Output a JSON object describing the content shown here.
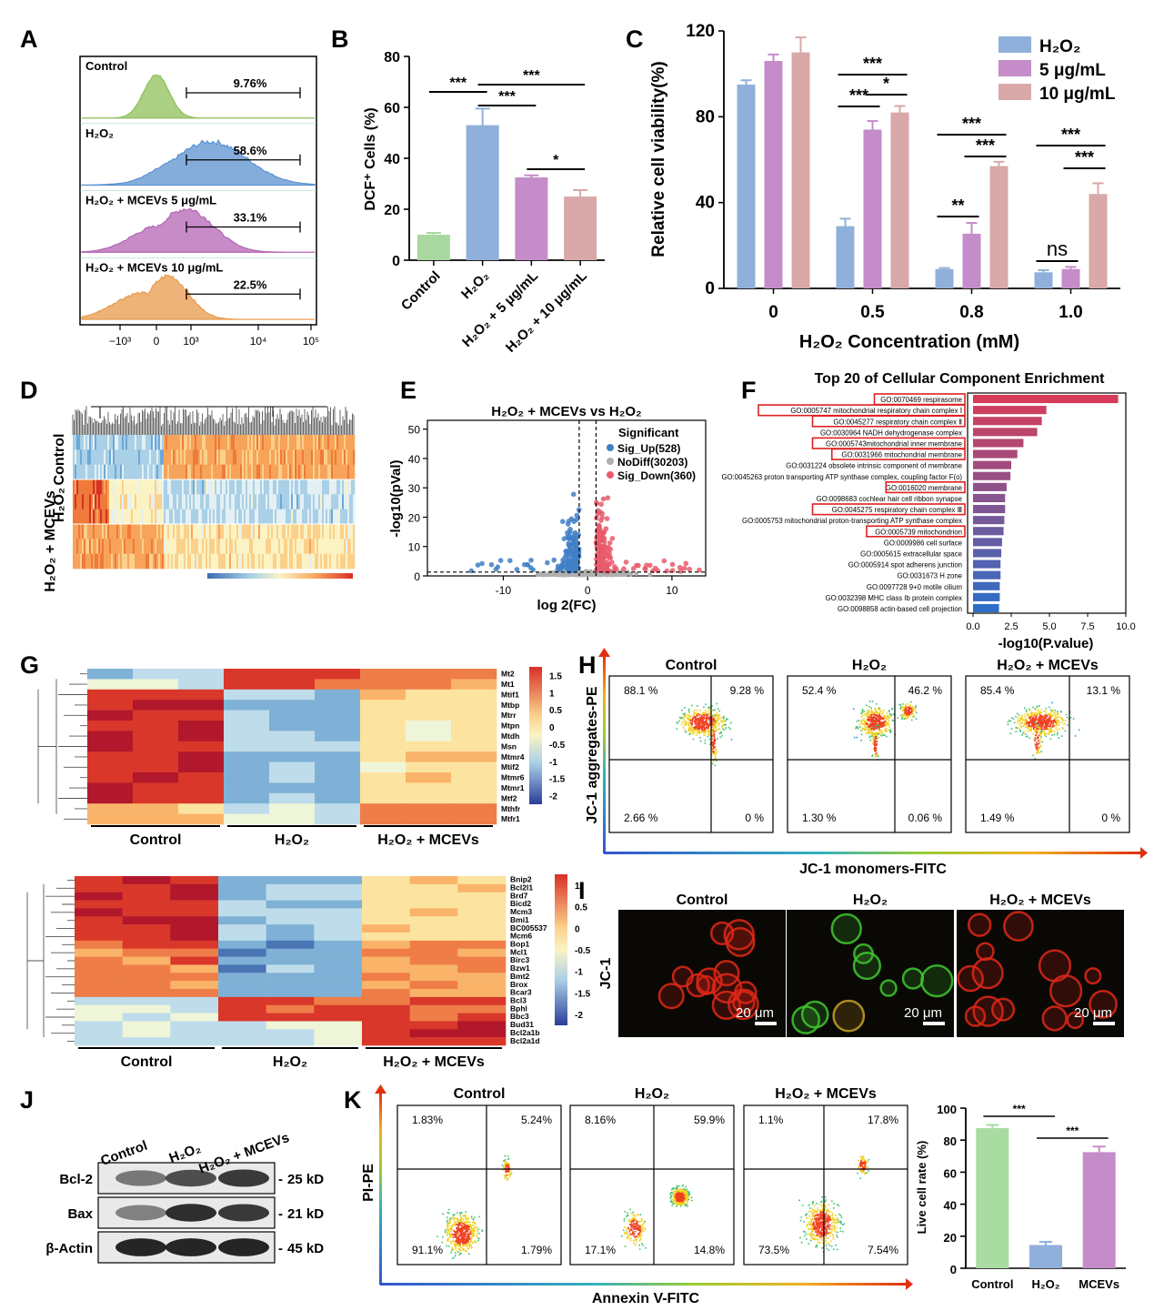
{
  "panel_labels": [
    "A",
    "B",
    "C",
    "D",
    "E",
    "F",
    "G",
    "H",
    "I",
    "J",
    "K"
  ],
  "chart_data": [
    {
      "panel": "A",
      "type": "area",
      "title": "",
      "x_tick_labels": [
        "−10³",
        "0",
        "10³",
        "10⁴",
        "10⁵"
      ],
      "series": [
        {
          "name": "Control",
          "gate_percent": "9.76%",
          "color": "#8fbf5a"
        },
        {
          "name": "H₂O₂",
          "gate_percent": "58.6%",
          "color": "#5b92d0"
        },
        {
          "name": "H₂O₂ + MCEVs 5 μg/mL",
          "gate_percent": "33.1%",
          "color": "#b466b4"
        },
        {
          "name": "H₂O₂ + MCEVs 10 μg/mL",
          "gate_percent": "22.5%",
          "color": "#e89a4c"
        }
      ]
    },
    {
      "panel": "B",
      "type": "bar",
      "ylabel": "DCF⁺ Cells (%)",
      "ylim": [
        0,
        80
      ],
      "y_ticks": [
        "0",
        "20",
        "40",
        "60",
        "80"
      ],
      "categories": [
        "Control",
        "H₂O₂",
        "H₂O₂ + 5 μg/mL",
        "H₂O₂ + 10 μg/mL"
      ],
      "values": [
        10,
        53,
        32.5,
        25
      ],
      "errors": [
        0.7,
        6.5,
        0.8,
        2.5
      ],
      "colors": [
        "#a8d8a0",
        "#8fb0da",
        "#c48cc8",
        "#d9a8a8"
      ],
      "significance": [
        "***",
        "***",
        "***",
        "*"
      ]
    },
    {
      "panel": "C",
      "type": "bar",
      "ylabel": "Relative cell viability(%)",
      "xlabel": "H₂O₂ Concentration (mM)",
      "ylim": [
        0,
        120
      ],
      "y_ticks": [
        "0",
        "40",
        "80",
        "120"
      ],
      "categories": [
        "0",
        "0.5",
        "0.8",
        "1.0"
      ],
      "legend_title": "",
      "series": [
        {
          "name": "H₂O₂",
          "color": "#8fb0da",
          "values": [
            95,
            29,
            9,
            7.5
          ],
          "errors": [
            2,
            3.5,
            0.5,
            1
          ]
        },
        {
          "name": "5 μg/mL",
          "color": "#c48cc8",
          "values": [
            106,
            74,
            25.5,
            9
          ],
          "errors": [
            3,
            4,
            5,
            1
          ]
        },
        {
          "name": "10 μg/mL",
          "color": "#d9a8a8",
          "values": [
            110,
            82,
            57,
            44
          ],
          "errors": [
            7,
            3,
            2,
            5
          ]
        }
      ],
      "significance": [
        "***",
        "***",
        "*",
        "***",
        "***",
        "**",
        "***",
        "***",
        "ns"
      ]
    },
    {
      "panel": "E",
      "type": "scatter",
      "title": "H₂O₂ + MCEVs vs H₂O₂",
      "xlabel": "log 2(FC)",
      "ylabel": "-log10(pVal)",
      "xlim": [
        -19,
        14
      ],
      "ylim": [
        0,
        53
      ],
      "x_ticks": [
        "-10",
        "0",
        "10"
      ],
      "y_ticks": [
        "0",
        "10",
        "20",
        "30",
        "40",
        "50"
      ],
      "legend_title": "Significant",
      "series": [
        {
          "name": "Sig_Up(528)",
          "color": "#3f7fc6"
        },
        {
          "name": "NoDiff(30203)",
          "color": "#b0b0b0"
        },
        {
          "name": "Sig_Down(360)",
          "color": "#e85a6a"
        }
      ]
    },
    {
      "panel": "F",
      "type": "bar",
      "title": "Top 20 of Cellular Component Enrichment",
      "xlabel": "-log10(P.value)",
      "xlim": [
        0,
        10
      ],
      "x_ticks": [
        "0.0",
        "2.5",
        "5.0",
        "7.5",
        "10.0"
      ],
      "categories": [
        "GO:0070469 respirasome",
        "GO:0005747 mitochondrial respiratory chain complex Ⅰ",
        "GO:0045277 respiratory chain complex Ⅱ",
        "GO:0030964 NADH dehydrogenase complex",
        "GO:0005743mitochondrial inner membrane",
        "GO:0031966 mitochondrial membrane",
        "GO:0031224 obsolete intrinsic component of membrane",
        "GO:0045263 proton transporting ATP synthase complex, coupling factor F(o)",
        "GO:0016020 membrane",
        "GO:0098683 cochlear hair cell ribbon synapse",
        "GO:0045275 respiratory chain complex Ⅲ",
        "GO:0005753 mitochondrial proton-transporting ATP synthase complex",
        "GO:0005739 mitochondrion",
        "GO:0009986 cell surface",
        "GO:0005615 extracellular space",
        "GO:0005914 spot adherens junction",
        "GO:0031673 H zone",
        "GO:0097728 9+0 motile cilium",
        "GO:0032398 MHC class Ib protein complex",
        "GO:0098858 actin-based cell projection"
      ],
      "values": [
        9.5,
        4.8,
        4.5,
        4.2,
        3.3,
        2.9,
        2.5,
        2.45,
        2.2,
        2.1,
        2.1,
        2.05,
        2.0,
        1.9,
        1.85,
        1.8,
        1.8,
        1.75,
        1.75,
        1.7
      ],
      "highlighted": [
        true,
        true,
        true,
        false,
        true,
        true,
        false,
        false,
        true,
        false,
        true,
        false,
        true,
        false,
        false,
        false,
        false,
        false,
        false,
        false
      ]
    },
    {
      "panel": "G-top",
      "type": "heatmap",
      "rows": [
        "Mt2",
        "Mt1",
        "Mtif1",
        "Mtbp",
        "Mtrr",
        "Mtpn",
        "Mtdh",
        "Msn",
        "Mtmr4",
        "Mtif2",
        "Mtmr6",
        "Mtmr1",
        "Mtf2",
        "Mthfr",
        "Mtfr1"
      ],
      "groups": [
        "Control",
        "H₂O₂",
        "H₂O₂ + MCEVs"
      ],
      "scale_ticks": [
        "1.5",
        "1",
        "0.5",
        "0",
        "-0.5",
        "-1",
        "-1.5",
        "-2"
      ]
    },
    {
      "panel": "G-bottom",
      "type": "heatmap",
      "rows": [
        "Bnip2",
        "Bcl2l1",
        "Brd7",
        "Bicd2",
        "Mcm3",
        "Bmi1",
        "BC005537",
        "Mcm6",
        "Bop1",
        "Mcl1",
        "Birc3",
        "Bzw1",
        "Bmt2",
        "Brox",
        "Bcar3",
        "Bcl3",
        "Bphl",
        "Bbc3",
        "Bud31",
        "Bcl2a1b",
        "Bcl2a1d"
      ],
      "groups": [
        "Control",
        "H₂O₂",
        "H₂O₂ + MCEVs"
      ],
      "scale_ticks": [
        "1",
        "0.5",
        "0",
        "-0.5",
        "-1",
        "-1.5",
        "-2"
      ]
    },
    {
      "panel": "H",
      "type": "scatter",
      "xlabel": "JC-1 monomers-FITC",
      "ylabel": "JC-1 aggregates-PE",
      "plots": [
        {
          "title": "Control",
          "quadrants": [
            "88.1 %",
            "9.28 %",
            "2.66 %",
            "0 %"
          ]
        },
        {
          "title": "H₂O₂",
          "quadrants": [
            "52.4 %",
            "46.2 %",
            "1.30 %",
            "0.06 %"
          ]
        },
        {
          "title": "H₂O₂ + MCEVs",
          "quadrants": [
            "85.4 %",
            "13.1 %",
            "1.49 %",
            "0 %"
          ]
        }
      ]
    },
    {
      "panel": "K",
      "type": "scatter",
      "xlabel": "Annexin V-FITC",
      "ylabel": "PI-PE",
      "plots": [
        {
          "title": "Control",
          "quadrants": [
            "1.83%",
            "5.24%",
            "91.1%",
            "1.79%"
          ]
        },
        {
          "title": "H₂O₂",
          "quadrants": [
            "8.16%",
            "59.9%",
            "17.1%",
            "14.8%"
          ]
        },
        {
          "title": "H₂O₂ + MCEVs",
          "quadrants": [
            "1.1%",
            "17.8%",
            "73.5%",
            "7.54%"
          ]
        }
      ]
    },
    {
      "panel": "K-bar",
      "type": "bar",
      "ylabel": "Live cell rate (%)",
      "ylim": [
        0,
        100
      ],
      "y_ticks": [
        "0",
        "20",
        "40",
        "60",
        "80",
        "100"
      ],
      "categories": [
        "Control",
        "H₂O₂",
        "MCEVs"
      ],
      "values": [
        87.5,
        14.5,
        72.5
      ],
      "errors": [
        2,
        2,
        3.5
      ],
      "colors": [
        "#a8dca0",
        "#8fb0da",
        "#c48cc8"
      ],
      "significance": [
        "***",
        "***"
      ]
    }
  ],
  "heatmap_D": {
    "row_labels": [
      "Control",
      "H₂O₂",
      "H₂O₂ + MCEVs"
    ]
  },
  "panel_I": {
    "title_labels": [
      "Control",
      "H₂O₂",
      "H₂O₂ + MCEVs"
    ],
    "ylabel": "JC-1",
    "scale_bar": "20 μm"
  },
  "panel_J": {
    "columns": [
      "Control",
      "H₂O₂",
      "H₂O₂ + MCEVs"
    ],
    "rows": [
      {
        "name": "Bcl-2",
        "size": "25 kD"
      },
      {
        "name": "Bax",
        "size": "21 kD"
      },
      {
        "name": "β-Actin",
        "size": "45 kD"
      }
    ]
  },
  "colors": {
    "accent_red": "#e02020",
    "axis_gradient_start": "#3355cc",
    "axis_gradient_end": "#e03010"
  }
}
